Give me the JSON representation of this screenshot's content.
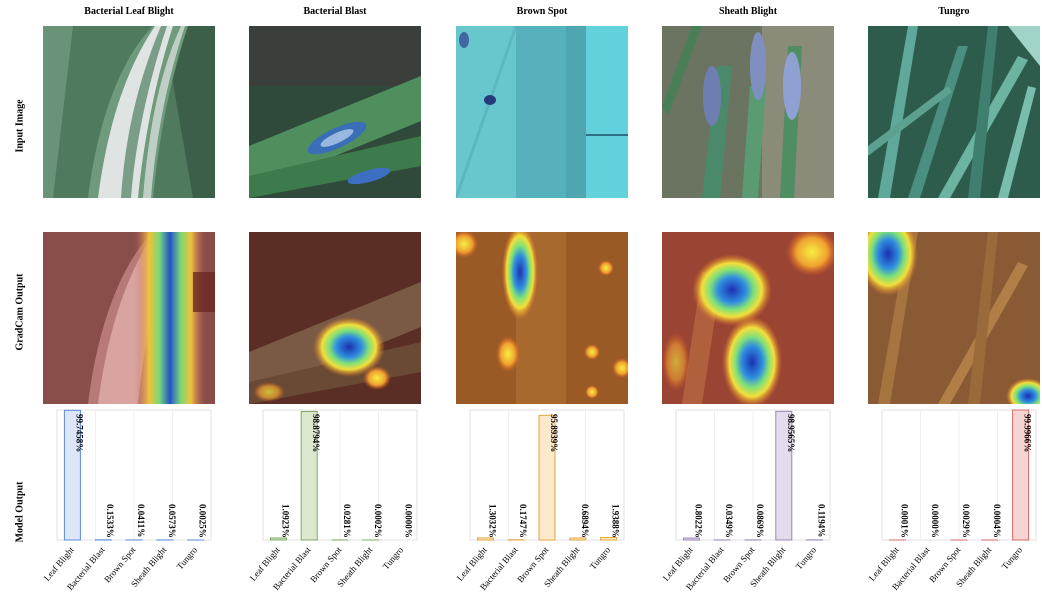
{
  "columns": [
    {
      "title": "Bacterial Leaf Blight"
    },
    {
      "title": "Bacterial Blast"
    },
    {
      "title": "Brown Spot"
    },
    {
      "title": "Sheath Blight"
    },
    {
      "title": "Tungro"
    }
  ],
  "row_labels": {
    "input": "Input Image",
    "gradcam": "GradCam Output",
    "model": "Model Output"
  },
  "chart_data": [
    {
      "type": "bar",
      "categories": [
        "Leaf Blight",
        "Bacterial Blast",
        "Brown Spot",
        "Sheath Blight",
        "Tungro"
      ],
      "values": [
        99.7458,
        0.1533,
        0.0411,
        0.0573,
        0.0025
      ],
      "labels": [
        "99.7458%",
        "0.1533%",
        "0.0411%",
        "0.0573%",
        "0.0025%"
      ],
      "ylim": [
        0,
        100
      ],
      "highlight": "#5b8bd9",
      "fill": "#dde6f7",
      "grid": true
    },
    {
      "type": "bar",
      "categories": [
        "Leaf Blight",
        "Bacterial Blast",
        "Brown Spot",
        "Sheath Blight",
        "Tungro"
      ],
      "values": [
        1.0923,
        98.8794,
        0.0281,
        0.0002,
        0.0
      ],
      "labels": [
        "1.0923%",
        "98.8794%",
        "0.0281%",
        "0.0002%",
        "0.0000%"
      ],
      "ylim": [
        0,
        100
      ],
      "highlight": "#7fa860",
      "fill": "#dbe8cf",
      "grid": true
    },
    {
      "type": "bar",
      "categories": [
        "Leaf Blight",
        "Bacterial Blast",
        "Brown Spot",
        "Sheath Blight",
        "Tungro"
      ],
      "values": [
        1.3032,
        0.1747,
        95.8939,
        0.6894,
        1.9388
      ],
      "labels": [
        "1.3032%",
        "0.1747%",
        "95.8939%",
        "0.6894%",
        "1.9388%"
      ],
      "ylim": [
        0,
        100
      ],
      "highlight": "#e3a63a",
      "fill": "#fbe9cc",
      "grid": true
    },
    {
      "type": "bar",
      "categories": [
        "Leaf Blight",
        "Bacterial Blast",
        "Brown Spot",
        "Sheath Blight",
        "Tungro"
      ],
      "values": [
        0.8022,
        0.0349,
        0.0869,
        98.9565,
        0.1194
      ],
      "labels": [
        "0.8022%",
        "0.0349%",
        "0.0869%",
        "98.9565%",
        "0.1194%"
      ],
      "ylim": [
        0,
        100
      ],
      "highlight": "#9b86b8",
      "fill": "#e3dcec",
      "grid": true
    },
    {
      "type": "bar",
      "categories": [
        "Leaf Blight",
        "Bacterial Blast",
        "Brown Spot",
        "Sheath Blight",
        "Tungro"
      ],
      "values": [
        0.0001,
        0.0,
        0.0029,
        0.0004,
        99.9966
      ],
      "labels": [
        "0.0001%",
        "0.0000%",
        "0.0029%",
        "0.0004%",
        "99.9966%"
      ],
      "ylim": [
        0,
        100
      ],
      "highlight": "#d46a6a",
      "fill": "#f6d4d2",
      "grid": true
    }
  ]
}
